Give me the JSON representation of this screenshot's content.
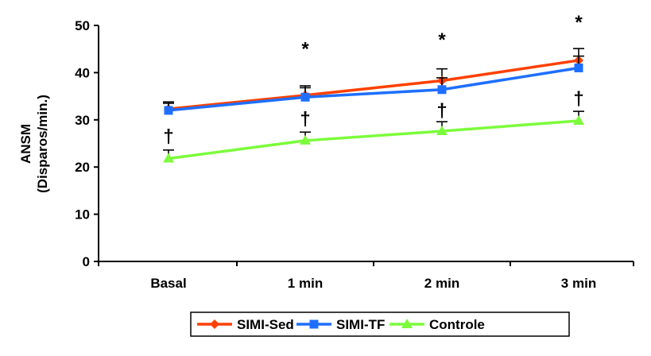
{
  "chart_data": {
    "type": "line",
    "title": "",
    "xlabel": "",
    "ylabel": "ANSM",
    "ylabel_line2": "(Disparos/min.)",
    "categories": [
      "Basal",
      "1 min",
      "2 min",
      "3 min"
    ],
    "ylim": [
      0,
      50
    ],
    "yticks": [
      "0",
      "10",
      "20",
      "30",
      "40",
      "50"
    ],
    "grid": false,
    "legend_position": "bottom",
    "series": [
      {
        "name": "SIMI-Sed",
        "color": "#FF4000",
        "marker": "diamond",
        "values": [
          32.3,
          35.2,
          38.3,
          42.6
        ],
        "error": [
          1.5,
          2.0,
          2.5,
          2.5
        ]
      },
      {
        "name": "SIMI-TF",
        "color": "#1E6FFF",
        "marker": "square",
        "values": [
          32.0,
          34.8,
          36.4,
          41.0
        ],
        "error": [
          1.5,
          2.0,
          2.5,
          2.5
        ]
      },
      {
        "name": "Controle",
        "color": "#7CFC3C",
        "marker": "triangle",
        "values": [
          21.8,
          25.6,
          27.6,
          29.8
        ],
        "error": [
          1.8,
          1.8,
          2.0,
          2.0
        ]
      }
    ],
    "annotations": [
      {
        "text": "*",
        "category": "1 min",
        "y": 45
      },
      {
        "text": "*",
        "category": "2 min",
        "y": 47
      },
      {
        "text": "*",
        "category": "3 min",
        "y": 50.7
      },
      {
        "text": "†",
        "category": "Basal",
        "y": 26.5
      },
      {
        "text": "†",
        "category": "1 min",
        "y": 30.2
      },
      {
        "text": "†",
        "category": "2 min",
        "y": 32
      },
      {
        "text": "†",
        "category": "3 min",
        "y": 34.5
      }
    ]
  }
}
